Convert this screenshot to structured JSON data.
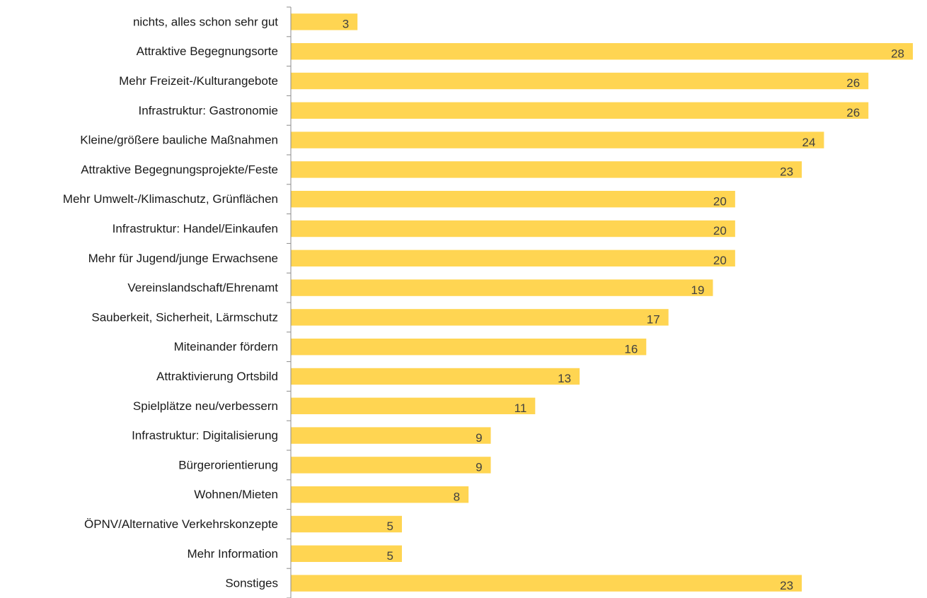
{
  "chart_data": {
    "type": "bar",
    "orientation": "horizontal",
    "categories": [
      "nichts, alles schon sehr gut",
      "Attraktive Begegnungsorte",
      "Mehr Freizeit-/Kulturangebote",
      "Infrastruktur: Gastronomie",
      "Kleine/größere bauliche Maßnahmen",
      "Attraktive Begegnungsprojekte/Feste",
      "Mehr Umwelt-/Klimaschutz, Grünflächen",
      "Infrastruktur: Handel/Einkaufen",
      "Mehr für Jugend/junge Erwachsene",
      "Vereinslandschaft/Ehrenamt",
      "Sauberkeit, Sicherheit, Lärmschutz",
      "Miteinander fördern",
      "Attraktivierung Ortsbild",
      "Spielplätze neu/verbessern",
      "Infrastruktur: Digitalisierung",
      "Bürgerorientierung",
      "Wohnen/Mieten",
      "ÖPNV/Alternative Verkehrskonzepte",
      "Mehr Information",
      "Sonstiges"
    ],
    "values": [
      3,
      28,
      26,
      26,
      24,
      23,
      20,
      20,
      20,
      19,
      17,
      16,
      13,
      11,
      9,
      9,
      8,
      5,
      5,
      23
    ],
    "data_labels": true,
    "xlim": [
      0,
      28
    ],
    "grid": false,
    "legend": "none",
    "bar_color": "#FFD552",
    "axis_color": "#8c8c8c"
  }
}
